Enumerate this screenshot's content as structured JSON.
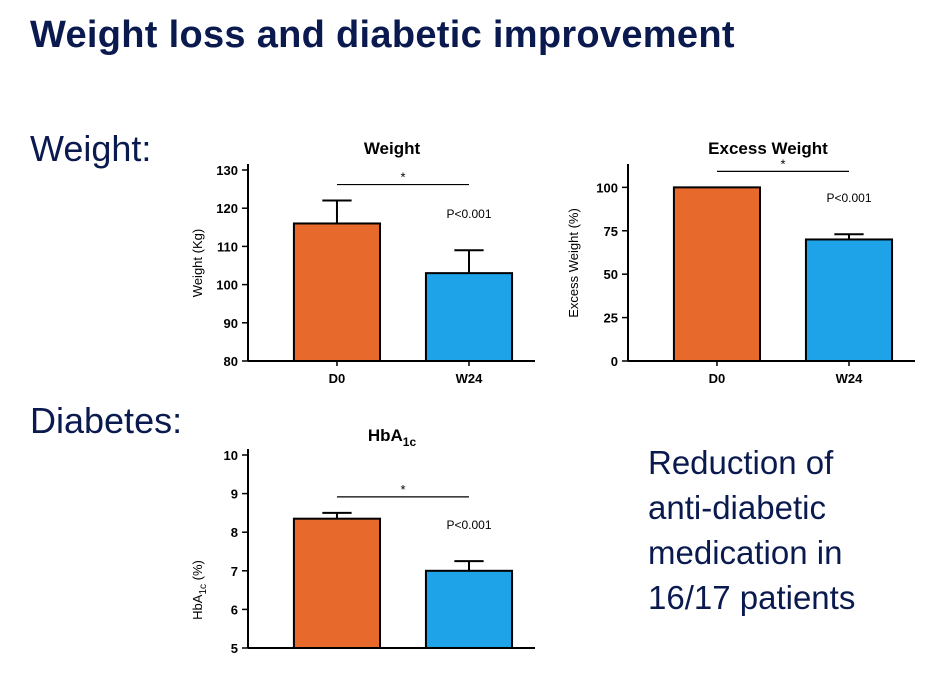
{
  "slide": {
    "title": "Weight loss and diabetic improvement",
    "section_weight": "Weight:",
    "section_diabetes": "Diabetes:",
    "note_lines": [
      "Reduction of",
      "anti-diabetic",
      "medication in",
      "16/17 patients"
    ]
  },
  "colors": {
    "d0": "#e8692c",
    "w24": "#1fa3e8",
    "text": "#0a1a4f"
  },
  "chart_data": [
    {
      "type": "bar",
      "title": "Weight",
      "categories": [
        "D0",
        "W24"
      ],
      "values": [
        116,
        103
      ],
      "errors": [
        6,
        6
      ],
      "ylabel": "Weight (Kg)",
      "ylim": [
        80,
        130
      ],
      "yticks": [
        80,
        90,
        100,
        110,
        120,
        130
      ],
      "significance": "*",
      "p_value": "P<0.001"
    },
    {
      "type": "bar",
      "title": "Excess Weight",
      "categories": [
        "D0",
        "W24"
      ],
      "values": [
        100,
        70
      ],
      "errors": [
        0,
        3
      ],
      "ylabel": "Excess Weight (%)",
      "ylim": [
        0,
        110
      ],
      "yticks": [
        0,
        25,
        50,
        75,
        100
      ],
      "significance": "*",
      "p_value": "P<0.001"
    },
    {
      "type": "bar",
      "title": "HbA",
      "title_sub": "1c",
      "categories": [
        "D0",
        "W24"
      ],
      "values": [
        8.35,
        7.0
      ],
      "errors": [
        0.15,
        0.25
      ],
      "ylabel": "HbA",
      "ylabel_sub": "1c",
      "ylabel_suffix": " (%)",
      "ylim": [
        5,
        10
      ],
      "yticks": [
        5,
        6,
        7,
        8,
        9,
        10
      ],
      "significance": "*",
      "p_value": "P<0.001"
    }
  ]
}
